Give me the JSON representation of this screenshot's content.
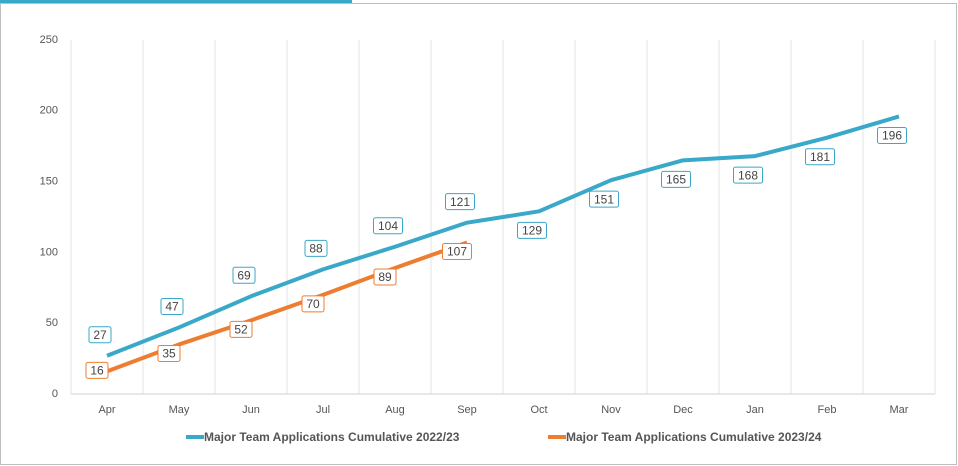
{
  "chart_data": {
    "type": "line",
    "categories": [
      "Apr",
      "May",
      "Jun",
      "Jul",
      "Aug",
      "Sep",
      "Oct",
      "Nov",
      "Dec",
      "Jan",
      "Feb",
      "Mar"
    ],
    "series": [
      {
        "name": "Major Team  Applications Cumulative 2022/23",
        "color": "#3aa8c8",
        "values": [
          27,
          47,
          69,
          88,
          104,
          121,
          129,
          151,
          165,
          168,
          181,
          196
        ]
      },
      {
        "name": "Major Team  Applications Cumulative 2023/24",
        "color": "#ed7d31",
        "values": [
          16,
          35,
          52,
          70,
          89,
          107,
          null,
          null,
          null,
          null,
          null,
          null
        ]
      }
    ],
    "ylim": [
      0,
      250
    ],
    "yticks": [
      0,
      50,
      100,
      150,
      200,
      250
    ],
    "grid": true,
    "legend": "bottom"
  }
}
